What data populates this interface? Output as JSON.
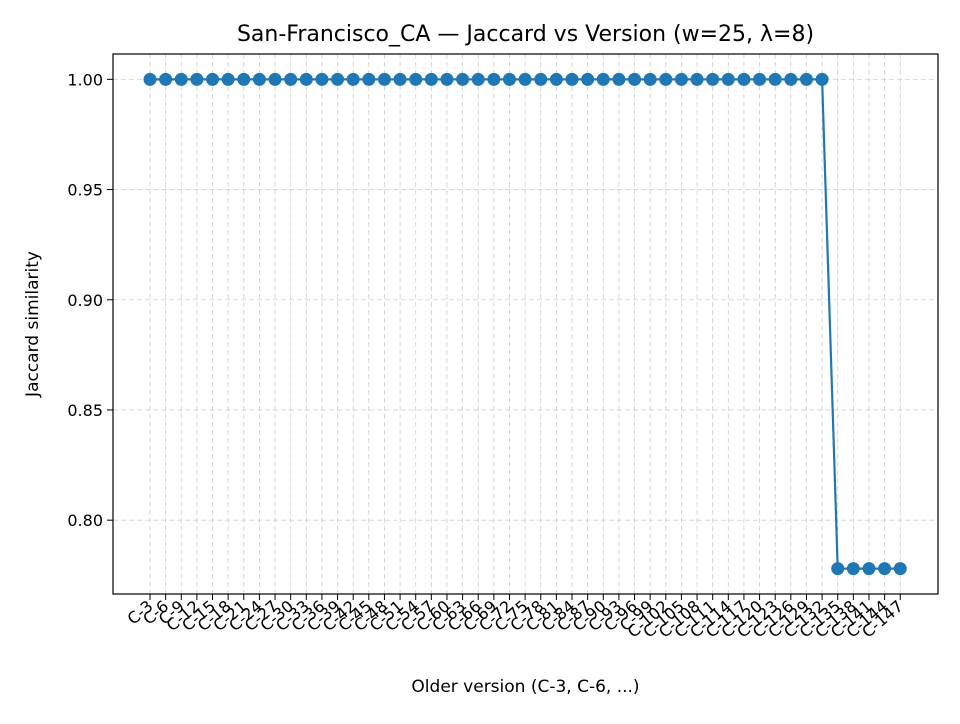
{
  "chart_data": {
    "type": "line",
    "title": "San-Francisco_CA — Jaccard vs Version (w=25, λ=8)",
    "xlabel": "Older version (C-3, C-6, ...)",
    "ylabel": "Jaccard similarity",
    "categories": [
      "C-3",
      "C-6",
      "C-9",
      "C-12",
      "C-15",
      "C-18",
      "C-21",
      "C-24",
      "C-27",
      "C-30",
      "C-33",
      "C-36",
      "C-39",
      "C-42",
      "C-45",
      "C-48",
      "C-51",
      "C-54",
      "C-57",
      "C-60",
      "C-63",
      "C-66",
      "C-69",
      "C-72",
      "C-75",
      "C-78",
      "C-81",
      "C-84",
      "C-87",
      "C-90",
      "C-93",
      "C-96",
      "C-99",
      "C-102",
      "C-105",
      "C-108",
      "C-111",
      "C-114",
      "C-117",
      "C-120",
      "C-123",
      "C-126",
      "C-129",
      "C-132",
      "C-135",
      "C-138",
      "C-141",
      "C-144",
      "C-147"
    ],
    "series": [
      {
        "color": "#1f77b4",
        "values": [
          1.0,
          1.0,
          1.0,
          1.0,
          1.0,
          1.0,
          1.0,
          1.0,
          1.0,
          1.0,
          1.0,
          1.0,
          1.0,
          1.0,
          1.0,
          1.0,
          1.0,
          1.0,
          1.0,
          1.0,
          1.0,
          1.0,
          1.0,
          1.0,
          1.0,
          1.0,
          1.0,
          1.0,
          1.0,
          1.0,
          1.0,
          1.0,
          1.0,
          1.0,
          1.0,
          1.0,
          1.0,
          1.0,
          1.0,
          1.0,
          1.0,
          1.0,
          1.0,
          1.0,
          0.778,
          0.778,
          0.778,
          0.778,
          0.778
        ]
      }
    ],
    "ylim": [
      0.7665,
      1.0115
    ],
    "yticks": [
      0.8,
      0.85,
      0.9,
      0.95,
      1.0
    ],
    "ytick_labels": [
      "0.80",
      "0.85",
      "0.90",
      "0.95",
      "1.00"
    ],
    "grid": true,
    "grid_style": "dashed",
    "xtick_rotation": -40
  }
}
